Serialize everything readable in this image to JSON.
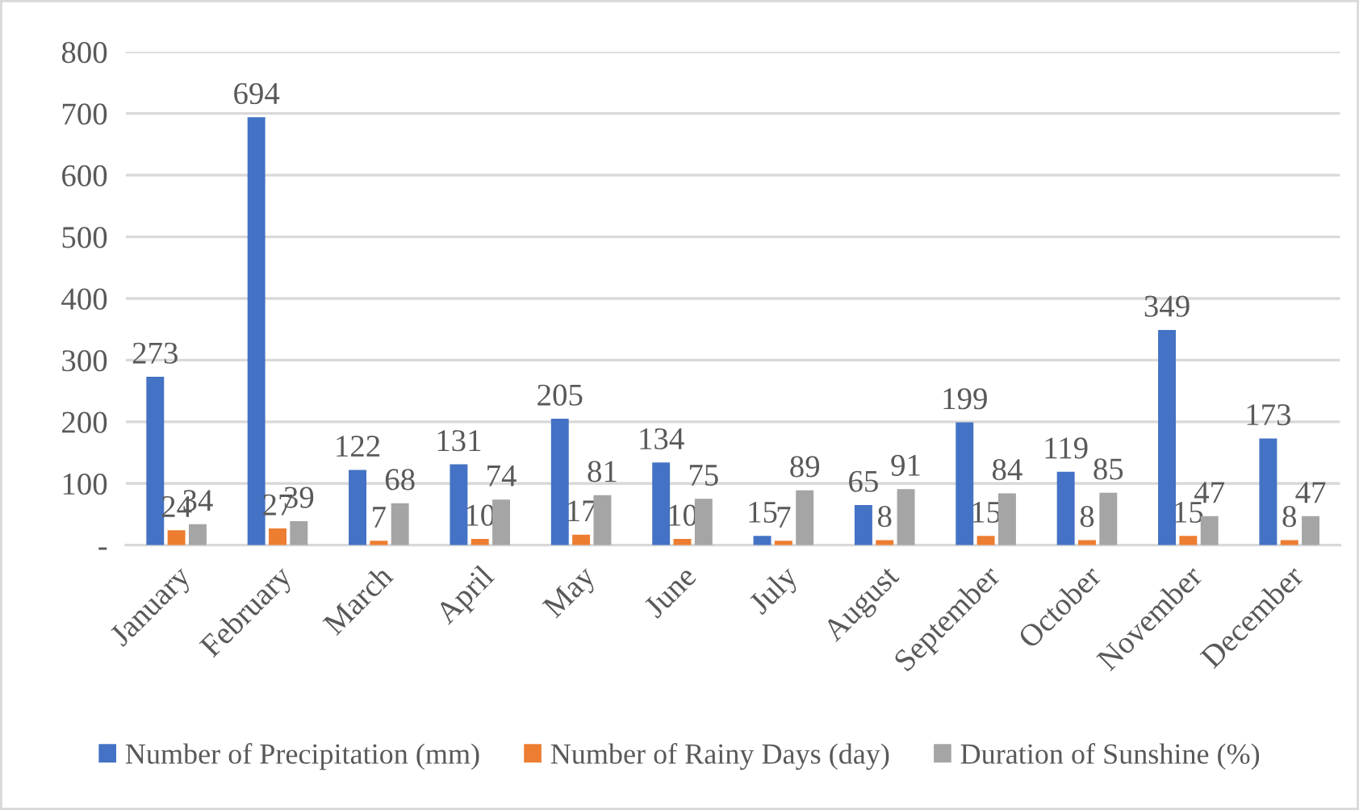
{
  "chart_data": {
    "type": "bar",
    "categories": [
      "January",
      "February",
      "March",
      "April",
      "May",
      "June",
      "July",
      "August",
      "September",
      "October",
      "November",
      "December"
    ],
    "series": [
      {
        "name": "Number of Precipitation (mm)",
        "color": "#4472c4",
        "values": [
          273,
          694,
          122,
          131,
          205,
          134,
          15,
          65,
          199,
          119,
          349,
          173
        ]
      },
      {
        "name": "Number of Rainy Days (day)",
        "color": "#ed7d31",
        "values": [
          24,
          27,
          7,
          10,
          17,
          10,
          7,
          8,
          15,
          8,
          15,
          8
        ]
      },
      {
        "name": "Duration of Sunshine (%)",
        "color": "#a5a5a5",
        "values": [
          34,
          39,
          68,
          74,
          81,
          75,
          89,
          91,
          84,
          85,
          47,
          47
        ]
      }
    ],
    "ylim": [
      0,
      800
    ],
    "yticks": [
      {
        "value": 0,
        "label": "-"
      },
      100,
      200,
      300,
      400,
      500,
      600,
      700,
      800
    ],
    "grid": "y",
    "legend": "bottom",
    "data_labels": true
  }
}
